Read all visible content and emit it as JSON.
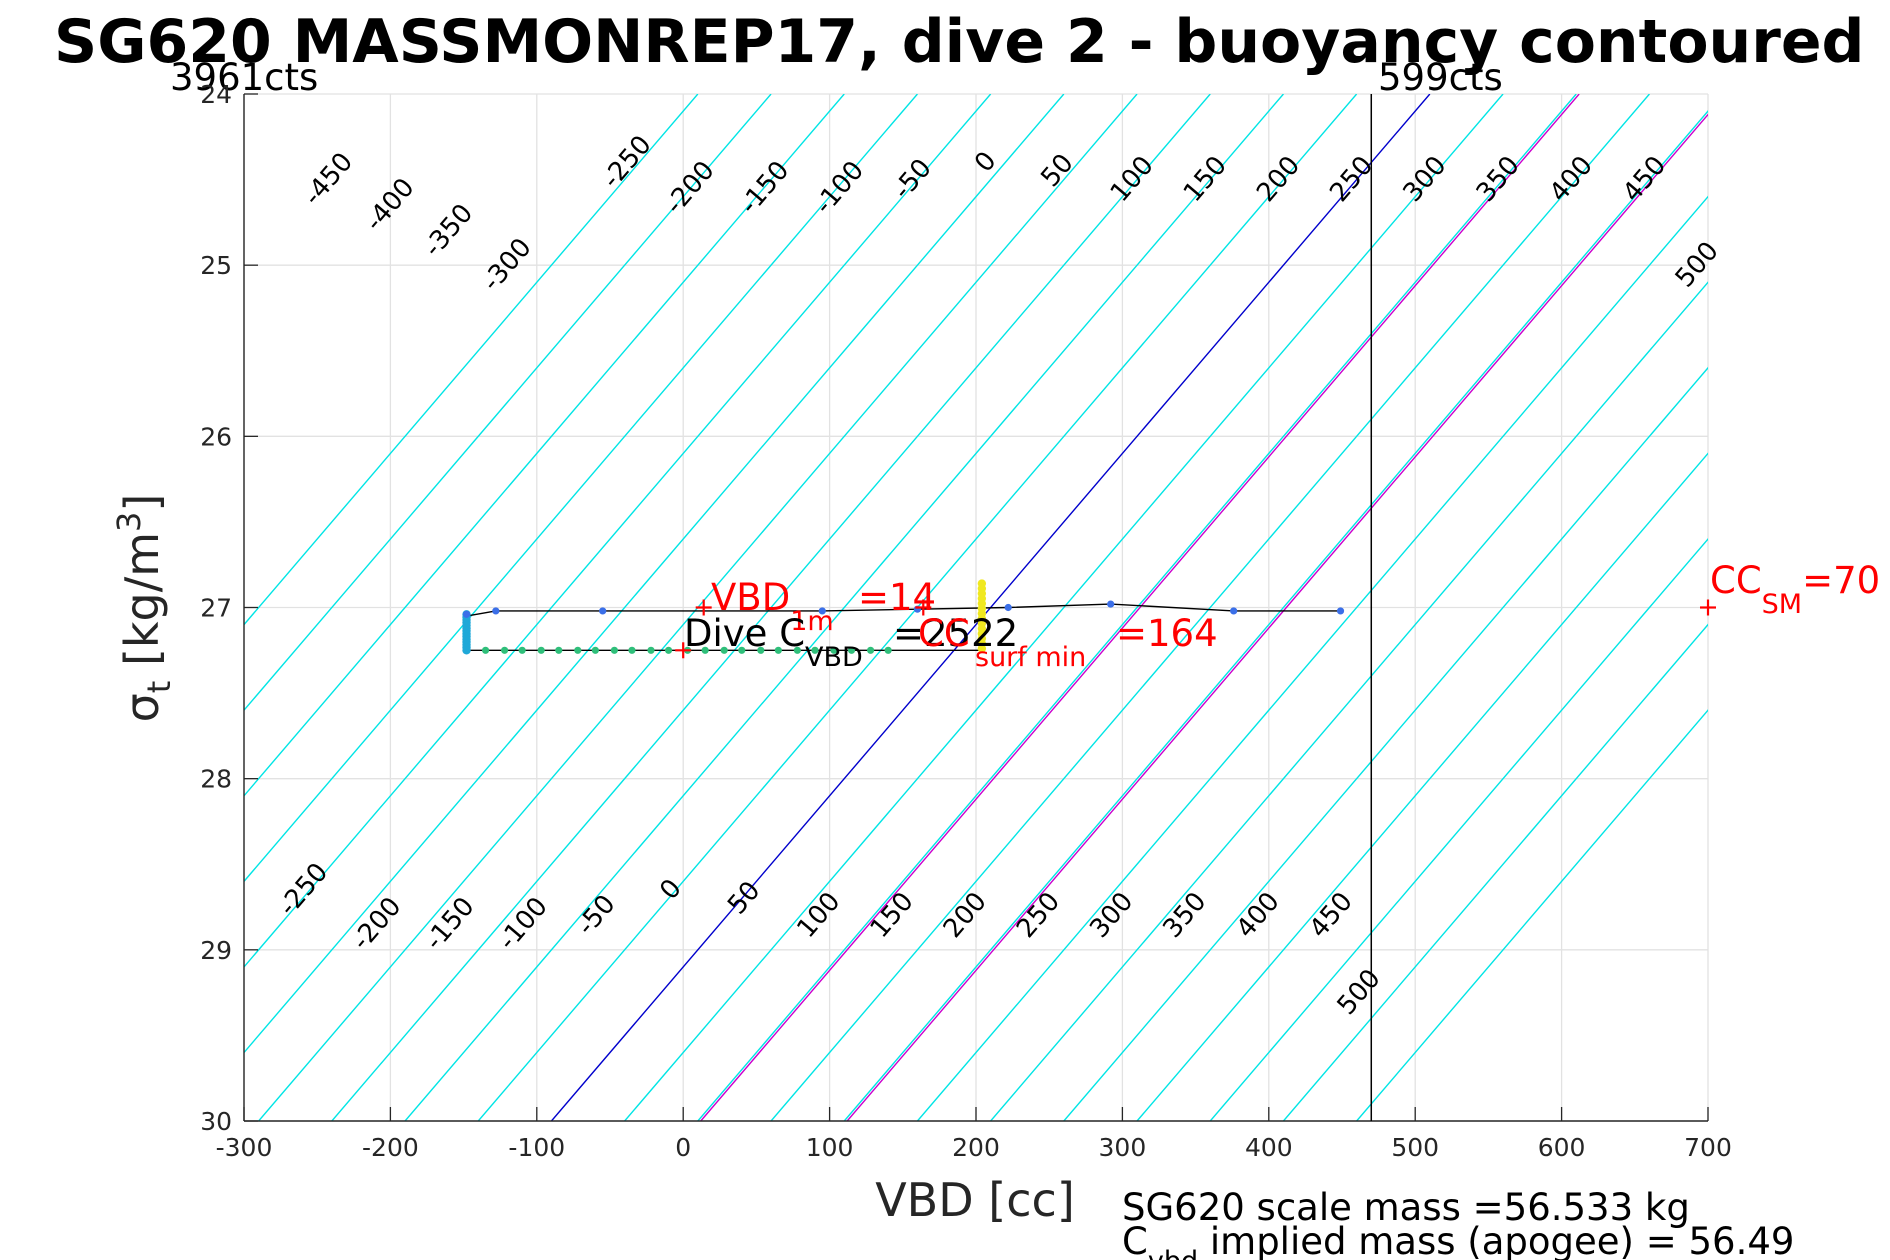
{
  "chart_data": {
    "type": "line",
    "title": "SG620 MASSMONREP17, dive 2 - buoyancy contoured",
    "xlabel": "VBD [cc]",
    "ylabel": "σ_t [kg/m^3]",
    "xlim": [
      -300,
      700
    ],
    "ylim": [
      24,
      30
    ],
    "y_reversed": true,
    "grid": true,
    "x_ticks": [
      "-300",
      "-200",
      "-100",
      "0",
      "100",
      "200",
      "300",
      "400",
      "500",
      "600",
      "700"
    ],
    "y_ticks": [
      "24",
      "25",
      "26",
      "27",
      "28",
      "29",
      "30"
    ],
    "top_left_label": "3961cts",
    "top_right_label": "599cts",
    "vbd_limit_x": 470,
    "buoyancy_contours": {
      "slope_cc_per_sigma": 100,
      "values": [
        -500,
        -450,
        -400,
        -350,
        -300,
        -250,
        -200,
        -150,
        -100,
        -50,
        0,
        50,
        100,
        150,
        200,
        250,
        300,
        350,
        400,
        450,
        500,
        550
      ],
      "color": "#00e5e5",
      "zero_color": "#0000cc",
      "highlight_color": "#cc00cc",
      "highlight_x_at_sigma30": [
        12,
        112
      ]
    },
    "top_contour_labels": [
      {
        "text": "-450",
        "x": -242,
        "y": 24.5
      },
      {
        "text": "-400",
        "x": -200,
        "y": 24.65
      },
      {
        "text": "-350",
        "x": -160,
        "y": 24.8
      },
      {
        "text": "-300",
        "x": -120,
        "y": 25.0
      },
      {
        "text": "-250",
        "x": -38,
        "y": 24.4
      },
      {
        "text": "-200",
        "x": 5,
        "y": 24.55
      },
      {
        "text": "-150",
        "x": 56,
        "y": 24.55
      },
      {
        "text": "-100",
        "x": 107,
        "y": 24.55
      },
      {
        "text": "-50",
        "x": 157,
        "y": 24.5
      },
      {
        "text": "0",
        "x": 207,
        "y": 24.4
      },
      {
        "text": "50",
        "x": 256,
        "y": 24.45
      },
      {
        "text": "100",
        "x": 307,
        "y": 24.5
      },
      {
        "text": "150",
        "x": 357,
        "y": 24.5
      },
      {
        "text": "200",
        "x": 407,
        "y": 24.5
      },
      {
        "text": "250",
        "x": 457,
        "y": 24.5
      },
      {
        "text": "300",
        "x": 507,
        "y": 24.5
      },
      {
        "text": "350",
        "x": 557,
        "y": 24.5
      },
      {
        "text": "400",
        "x": 607,
        "y": 24.5
      },
      {
        "text": "450",
        "x": 657,
        "y": 24.5
      },
      {
        "text": "500",
        "x": 693,
        "y": 25.0
      }
    ],
    "bottom_contour_labels": [
      {
        "text": "-250",
        "x": -259,
        "y": 28.65
      },
      {
        "text": "-200",
        "x": -209,
        "y": 28.85
      },
      {
        "text": "-150",
        "x": -159,
        "y": 28.85
      },
      {
        "text": "-100",
        "x": -109,
        "y": 28.85
      },
      {
        "text": "-50",
        "x": -59,
        "y": 28.8
      },
      {
        "text": "0",
        "x": -8,
        "y": 28.65
      },
      {
        "text": "50",
        "x": 42,
        "y": 28.7
      },
      {
        "text": "100",
        "x": 93,
        "y": 28.8
      },
      {
        "text": "150",
        "x": 143,
        "y": 28.8
      },
      {
        "text": "200",
        "x": 193,
        "y": 28.8
      },
      {
        "text": "250",
        "x": 243,
        "y": 28.8
      },
      {
        "text": "300",
        "x": 293,
        "y": 28.8
      },
      {
        "text": "350",
        "x": 343,
        "y": 28.8
      },
      {
        "text": "400",
        "x": 393,
        "y": 28.8
      },
      {
        "text": "450",
        "x": 443,
        "y": 28.8
      },
      {
        "text": "500",
        "x": 462,
        "y": 29.25
      }
    ],
    "upper_track": {
      "color": "#000000",
      "line_points": [
        [
          -148,
          27.05
        ],
        [
          -128,
          27.02
        ],
        [
          -55,
          27.02
        ],
        [
          95,
          27.02
        ],
        [
          160,
          27.01
        ],
        [
          222,
          27.0
        ],
        [
          292,
          26.98
        ],
        [
          376,
          27.02
        ],
        [
          449,
          27.02
        ]
      ],
      "marker_points": [
        [
          -148,
          27.04
        ],
        [
          -128,
          27.02
        ],
        [
          -55,
          27.02
        ],
        [
          95,
          27.02
        ],
        [
          160,
          27.01
        ],
        [
          222,
          27.0
        ],
        [
          292,
          26.98
        ],
        [
          376,
          27.02
        ],
        [
          449,
          27.02
        ]
      ],
      "marker_color": "#3b6fe8"
    },
    "lower_track": {
      "color": "#000000",
      "y": 27.25,
      "x_start": -148,
      "x_end": 205,
      "marker_x": [
        -148,
        -135,
        -122,
        -110,
        -97,
        -85,
        -72,
        -60,
        -47,
        -35,
        -22,
        -10,
        3,
        15,
        28,
        40,
        53,
        65,
        78,
        90,
        103,
        115,
        128,
        140
      ],
      "marker_color": "#2fbf7a"
    },
    "vertical_clusters": [
      {
        "x": -148,
        "y_from": 27.04,
        "y_to": 27.25,
        "color": "#1fa8d8"
      },
      {
        "x": 204,
        "y_from": 26.86,
        "y_to": 27.24,
        "color": "#f0e820"
      }
    ],
    "annotations": [
      {
        "kind": "plus",
        "x": 14,
        "y": 27.0,
        "color": "#ff0000"
      },
      {
        "kind": "plus",
        "x": 0,
        "y": 27.25,
        "color": "#ff0000"
      },
      {
        "kind": "plus",
        "x": 700,
        "y": 27.0,
        "color": "#ff0000"
      },
      {
        "kind": "plus",
        "x": 164,
        "y": 27.0,
        "color": "#ff0000"
      }
    ],
    "label_vbd1m": {
      "main": "VBD",
      "sub": "1m",
      "value": "=14"
    },
    "label_dive_c": {
      "main": "Dive C",
      "sub": "VBD",
      "value": "=2522"
    },
    "label_ccsurf": {
      "main": "CC",
      "sub": "surf min",
      "value": "=164"
    },
    "label_ccsm": {
      "main": "CC",
      "sub": "SM",
      "value": "=70"
    },
    "footer_scale_mass": "SG620 scale mass =56.533 kg",
    "footer_cvbd_main": "C",
    "footer_cvbd_sub": "vbd",
    "footer_cvbd_text": " implied mass (apogee) = 56.49"
  }
}
